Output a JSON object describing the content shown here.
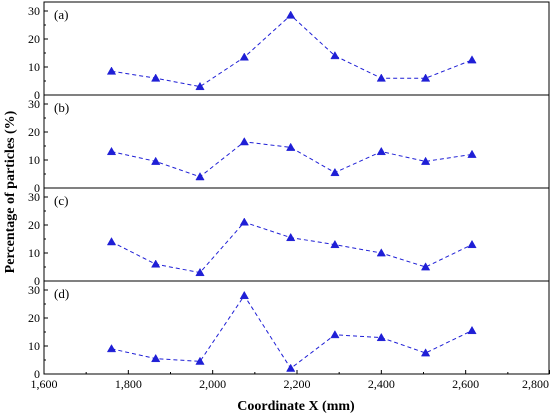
{
  "chart_data": {
    "type": "line",
    "xlabel": "Coordinate X (mm)",
    "ylabel": "Percentage of particles (%)",
    "xlim": [
      1600,
      2800
    ],
    "x_ticks": [
      "1,600",
      "1,800",
      "2,000",
      "2,200",
      "2,400",
      "2,600",
      "2,800"
    ],
    "x_tick_values": [
      1600,
      1800,
      2000,
      2200,
      2400,
      2600,
      2800
    ],
    "ylim": [
      0,
      30
    ],
    "y_tick_values": [
      0,
      10,
      20,
      30
    ],
    "y_ticks": [
      "0",
      "10",
      "20",
      "30"
    ],
    "x": [
      1760,
      1865,
      1970,
      2075,
      2185,
      2290,
      2400,
      2505,
      2615
    ],
    "line_color": "#1f1fd6",
    "line_style": "dashed",
    "marker": "triangle",
    "panels": [
      {
        "label": "(a)",
        "values": [
          8.5,
          6.0,
          3.0,
          13.5,
          28.5,
          14.0,
          6.0,
          6.0,
          12.5
        ]
      },
      {
        "label": "(b)",
        "values": [
          13.0,
          9.5,
          4.0,
          16.5,
          14.5,
          5.5,
          13.0,
          9.5,
          12.0
        ]
      },
      {
        "label": "(c)",
        "values": [
          14.0,
          6.0,
          3.0,
          21.0,
          15.5,
          13.0,
          10.0,
          5.0,
          13.0
        ]
      },
      {
        "label": "(d)",
        "values": [
          9.0,
          5.5,
          4.5,
          28.0,
          2.0,
          14.0,
          13.0,
          7.5,
          15.5
        ]
      }
    ]
  }
}
